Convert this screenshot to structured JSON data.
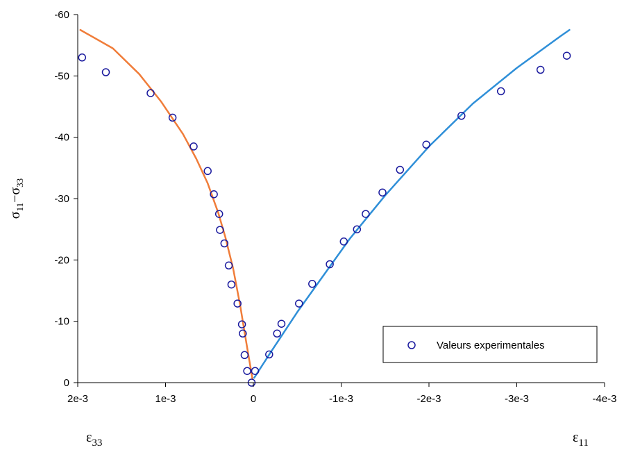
{
  "chart_data": {
    "type": "scatter",
    "x_ticks": [
      "2e-3",
      "1e-3",
      "0",
      "-1e-3",
      "-2e-3",
      "-3e-3",
      "-4e-3"
    ],
    "x_tick_values": [
      0.002,
      0.001,
      0,
      -0.001,
      -0.002,
      -0.003,
      -0.004
    ],
    "xlim": [
      0.002,
      -0.004
    ],
    "y_ticks": [
      "-60",
      "-50",
      "-40",
      "-30",
      "-20",
      "-10",
      "0"
    ],
    "y_tick_values": [
      -60,
      -50,
      -40,
      -30,
      -20,
      -10,
      0
    ],
    "ylim": [
      0,
      -60
    ],
    "ylabel": {
      "base1": "σ",
      "sub1": "11",
      "sep": "−",
      "base2": "σ",
      "sub2": "33"
    },
    "xlabel_left": {
      "base": "ε",
      "sub": "33"
    },
    "xlabel_right": {
      "base": "ε",
      "sub": "11"
    },
    "legend": {
      "label": "Valeurs experimentales",
      "position": "bottom-right"
    },
    "grid": false,
    "series": [
      {
        "name": "Valeurs experimentales",
        "kind": "markers",
        "color": "#1a1a9e",
        "points": [
          [
            0.00195,
            -53
          ],
          [
            0.00168,
            -50.6
          ],
          [
            0.00117,
            -47.2
          ],
          [
            0.00092,
            -43.2
          ],
          [
            0.00068,
            -38.5
          ],
          [
            0.00052,
            -34.5
          ],
          [
            0.00045,
            -30.7
          ],
          [
            0.00039,
            -27.5
          ],
          [
            0.00038,
            -24.9
          ],
          [
            0.00033,
            -22.7
          ],
          [
            0.00028,
            -19.1
          ],
          [
            0.00025,
            -16
          ],
          [
            0.00018,
            -12.9
          ],
          [
            0.00013,
            -9.5
          ],
          [
            0.00012,
            -8
          ],
          [
            0.0001,
            -4.5
          ],
          [
            7e-05,
            -1.9
          ],
          [
            2e-05,
            0
          ],
          [
            -2e-05,
            -1.9
          ],
          [
            -0.00018,
            -4.6
          ],
          [
            -0.00027,
            -8
          ],
          [
            -0.00032,
            -9.6
          ],
          [
            -0.00052,
            -12.9
          ],
          [
            -0.00067,
            -16.1
          ],
          [
            -0.00087,
            -19.3
          ],
          [
            -0.00103,
            -23
          ],
          [
            -0.00118,
            -25
          ],
          [
            -0.00128,
            -27.5
          ],
          [
            -0.00147,
            -31
          ],
          [
            -0.00167,
            -34.7
          ],
          [
            -0.00197,
            -38.8
          ],
          [
            -0.00237,
            -43.5
          ],
          [
            -0.00282,
            -47.5
          ],
          [
            -0.00327,
            -51
          ],
          [
            -0.00357,
            -53.3
          ]
        ]
      },
      {
        "kind": "line",
        "color": "#f07d3a",
        "points": [
          [
            0.00197,
            -57.5
          ],
          [
            0.0016,
            -54.5
          ],
          [
            0.0013,
            -50.3
          ],
          [
            0.00105,
            -45.8
          ],
          [
            0.0008,
            -40.5
          ],
          [
            0.00065,
            -36.5
          ],
          [
            0.00052,
            -32.5
          ],
          [
            0.0004,
            -27.7
          ],
          [
            0.00032,
            -23.8
          ],
          [
            0.00023,
            -18.6
          ],
          [
            0.00015,
            -12.6
          ],
          [
            8e-05,
            -6.5
          ],
          [
            3e-05,
            -2.3
          ],
          [
            1e-05,
            -0.6
          ]
        ]
      },
      {
        "kind": "line",
        "color": "#2f8fd8",
        "points": [
          [
            -1e-05,
            -0.8
          ],
          [
            -0.0002,
            -5
          ],
          [
            -0.0005,
            -11.5
          ],
          [
            -0.0008,
            -17.5
          ],
          [
            -0.0011,
            -23.5
          ],
          [
            -0.0015,
            -30.5
          ],
          [
            -0.002,
            -38.5
          ],
          [
            -0.0025,
            -45.5
          ],
          [
            -0.003,
            -51.3
          ],
          [
            -0.0035,
            -56.5
          ],
          [
            -0.0036,
            -57.5
          ]
        ]
      }
    ]
  }
}
